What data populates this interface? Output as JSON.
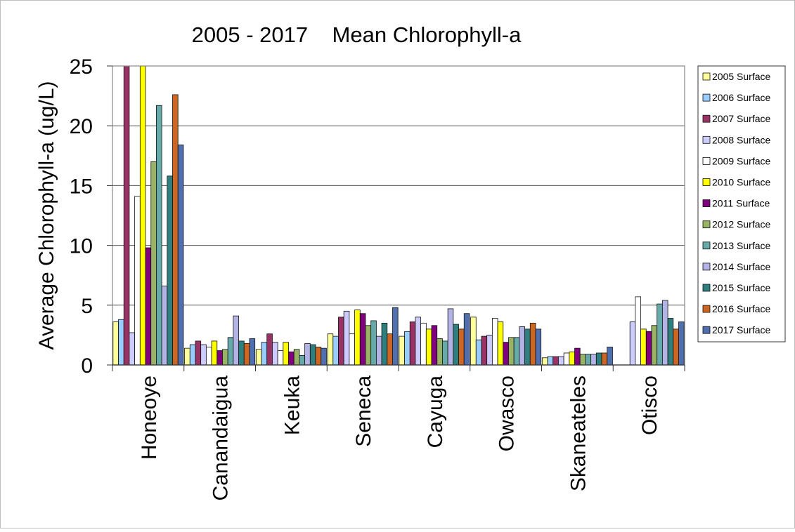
{
  "colors": {
    "2005": "#ffff99",
    "2006": "#99ccff",
    "2007": "#993366",
    "2008": "#ccccff",
    "2009": "#ffffff",
    "2010": "#ffff00",
    "2011": "#800080",
    "2012": "#99b366",
    "2013": "#66aaaa",
    "2014": "#b3b3e6",
    "2015": "#2f7f7f",
    "2016": "#cc6622",
    "2017": "#4f6fae"
  },
  "chart_data": {
    "type": "bar",
    "title": "2005 - 2017    Mean Chlorophyll-a",
    "xlabel": "",
    "ylabel": "Average Chlorophyll-a (ug/L)",
    "ylim": [
      0,
      25
    ],
    "yticks": [
      "0",
      "5",
      "10",
      "15",
      "20",
      "25"
    ],
    "grid": true,
    "legend_position": "right",
    "categories": [
      "Honeoye",
      "Canandaigua",
      "Keuka",
      "Seneca",
      "Cayuga",
      "Owasco",
      "Skaneateles",
      "Otisco"
    ],
    "series": [
      {
        "name": "2005 Surface",
        "values": [
          3.6,
          1.4,
          1.3,
          2.6,
          2.4,
          4.0,
          0.6,
          null
        ]
      },
      {
        "name": "2006 Surface",
        "values": [
          3.8,
          1.7,
          1.9,
          2.4,
          2.8,
          2.1,
          0.7,
          null
        ]
      },
      {
        "name": "2007 Surface",
        "values": [
          25.0,
          2.0,
          2.6,
          4.0,
          3.6,
          2.4,
          0.7,
          null
        ]
      },
      {
        "name": "2008 Surface",
        "values": [
          2.7,
          1.7,
          1.9,
          4.5,
          4.0,
          2.5,
          0.7,
          3.6
        ]
      },
      {
        "name": "2009 Surface",
        "values": [
          14.1,
          1.5,
          1.2,
          2.6,
          3.5,
          3.9,
          1.0,
          5.7
        ]
      },
      {
        "name": "2010 Surface",
        "values": [
          25.0,
          2.0,
          1.9,
          4.6,
          3.0,
          3.6,
          1.1,
          3.0
        ]
      },
      {
        "name": "2011 Surface",
        "values": [
          9.8,
          1.2,
          1.1,
          4.3,
          3.3,
          1.9,
          1.4,
          2.8
        ]
      },
      {
        "name": "2012 Surface",
        "values": [
          17.0,
          1.3,
          1.3,
          3.3,
          2.2,
          2.3,
          0.9,
          3.3
        ]
      },
      {
        "name": "2013 Surface",
        "values": [
          21.7,
          2.3,
          0.8,
          3.7,
          2.0,
          2.3,
          0.9,
          5.1
        ]
      },
      {
        "name": "2014 Surface",
        "values": [
          6.6,
          4.1,
          1.8,
          2.4,
          4.7,
          3.2,
          0.9,
          5.4
        ]
      },
      {
        "name": "2015 Surface",
        "values": [
          15.8,
          2.0,
          1.7,
          3.5,
          3.4,
          3.0,
          1.0,
          3.9
        ]
      },
      {
        "name": "2016 Surface",
        "values": [
          22.6,
          1.8,
          1.5,
          2.6,
          3.0,
          3.5,
          1.0,
          3.0
        ]
      },
      {
        "name": "2017 Surface",
        "values": [
          18.4,
          2.2,
          1.4,
          4.8,
          4.3,
          3.0,
          1.5,
          3.6
        ]
      }
    ]
  }
}
